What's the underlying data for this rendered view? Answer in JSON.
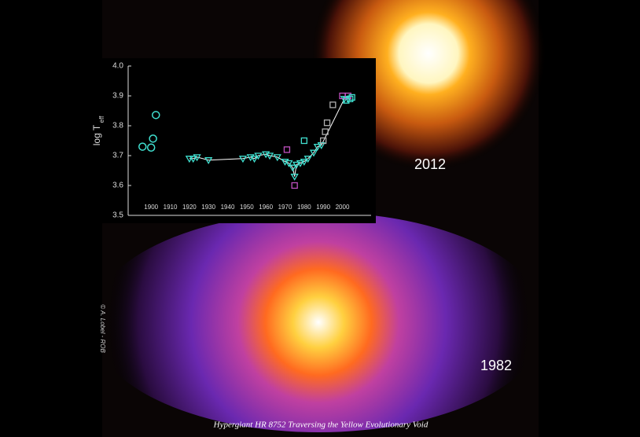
{
  "chart_data": {
    "type": "scatter",
    "ylabel": "log T",
    "ylabel_sub": "eff",
    "xlim": [
      1888,
      2015
    ],
    "ylim": [
      3.5,
      4.0
    ],
    "xticks": [
      1900,
      1910,
      1920,
      1930,
      1940,
      1950,
      1960,
      1970,
      1980,
      1990,
      2000
    ],
    "yticks": [
      {
        "value": 3.5,
        "label": "3.5"
      },
      {
        "value": 3.6,
        "label": "3.6"
      },
      {
        "value": 3.7,
        "label": "3.7"
      },
      {
        "value": 3.8,
        "label": "3.8"
      },
      {
        "value": 3.9,
        "label": "3.9"
      },
      {
        "value": 4.0,
        "label": "4.0"
      }
    ],
    "series": [
      {
        "marker": "circle",
        "color": "#40e0d0",
        "x": [
          1895.5,
          1900,
          1901,
          1902.5
        ],
        "values": [
          3.73,
          3.727,
          3.757,
          3.836
        ]
      },
      {
        "marker": "triangle",
        "color": "#40e0d0",
        "line": "#ffffff",
        "x": [
          1920,
          1922,
          1924,
          1930,
          1948,
          1952,
          1954,
          1956,
          1960,
          1962,
          1966,
          1970,
          1972,
          1974,
          1975,
          1976,
          1978,
          1980,
          1982,
          1985,
          1987,
          1989,
          2001,
          2003
        ],
        "values": [
          3.69,
          3.69,
          3.695,
          3.685,
          3.69,
          3.695,
          3.69,
          3.7,
          3.705,
          3.7,
          3.695,
          3.68,
          3.675,
          3.66,
          3.63,
          3.67,
          3.675,
          3.68,
          3.69,
          3.71,
          3.73,
          3.735,
          3.89,
          3.89
        ]
      },
      {
        "marker": "square",
        "color": "#c050c0",
        "x": [
          1971,
          1975,
          2000,
          2003
        ],
        "values": [
          3.72,
          3.6,
          3.9,
          3.9
        ]
      },
      {
        "marker": "square",
        "color": "#b0b0b0",
        "x": [
          1990,
          1991,
          1992,
          1995
        ],
        "values": [
          3.75,
          3.78,
          3.81,
          3.87
        ]
      },
      {
        "marker": "square",
        "color": "#40e0d0",
        "x": [
          1980,
          2002,
          2004,
          2005
        ],
        "values": [
          3.75,
          3.885,
          3.89,
          3.895
        ]
      }
    ]
  },
  "image": {
    "labels": [
      "2012",
      "1982"
    ],
    "caption": "Hypergiant HR 8752 Traversing the Yellow Evolutionary Void",
    "credit": "© A. Lobel - ROB"
  }
}
